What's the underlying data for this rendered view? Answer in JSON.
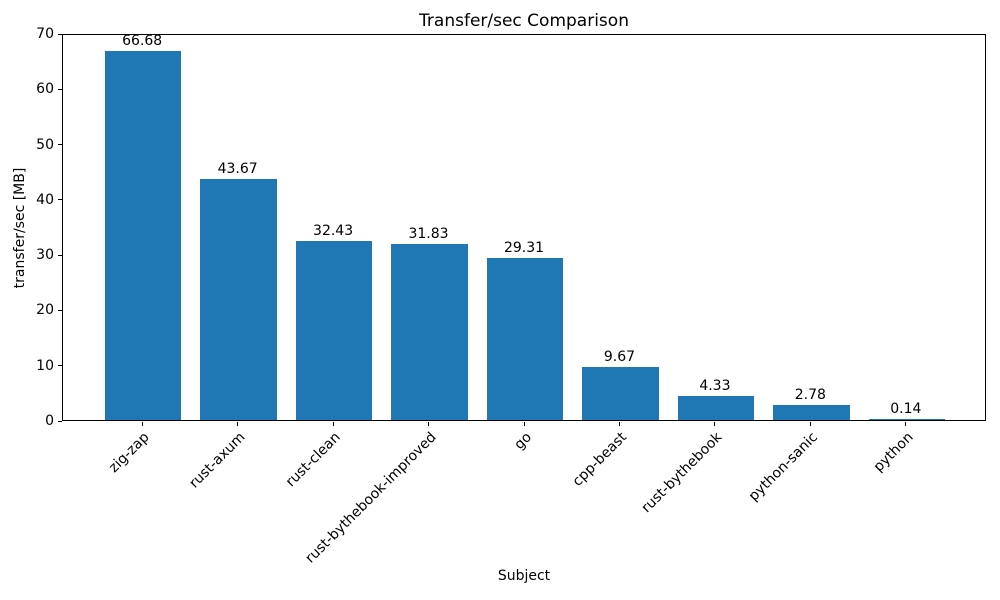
{
  "chart_data": {
    "type": "bar",
    "title": "Transfer/sec Comparison",
    "xlabel": "Subject",
    "ylabel": "transfer/sec [MB]",
    "categories": [
      "zig-zap",
      "rust-axum",
      "rust-clean",
      "rust-bythebook-improved",
      "go",
      "cpp-beast",
      "rust-bythebook",
      "python-sanic",
      "python"
    ],
    "values": [
      66.68,
      43.67,
      32.43,
      31.83,
      29.31,
      9.67,
      4.33,
      2.78,
      0.14
    ],
    "value_labels": [
      "66.68",
      "43.67",
      "32.43",
      "31.83",
      "29.31",
      "9.67",
      "4.33",
      "2.78",
      "0.14"
    ],
    "ylim": [
      0,
      70
    ],
    "yticks": [
      0,
      10,
      20,
      30,
      40,
      50,
      60,
      70
    ],
    "bar_color": "#1f77b4",
    "axis_color": "#000000",
    "grid": false,
    "legend": "none",
    "x_tick_rotation_deg": 45
  }
}
